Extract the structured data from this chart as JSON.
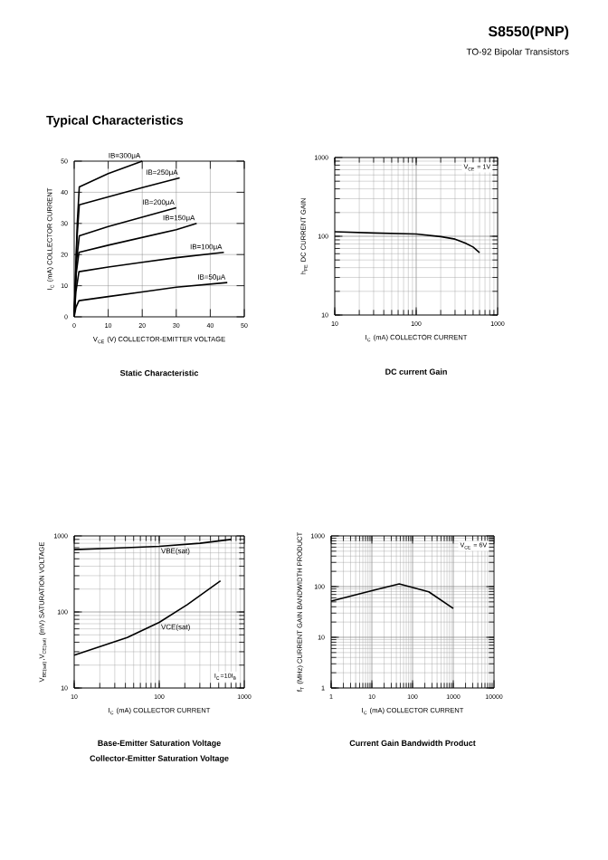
{
  "chart_data": [
    {
      "type": "other",
      "title": "S8550(PNP)",
      "subtitle": "TO-92 Bipolar Transistors",
      "annotations": [
        "Typical Characteristics"
      ]
    },
    {
      "type": "line",
      "title": "Static Characteristic",
      "xlabel": "V$_{CE}$ (V) COLLECTOR-EMITTER VOLTAGE",
      "ylabel": "I$_{C}$ (mA) COLLECTOR CURRENT",
      "xlim": [
        0,
        50
      ],
      "ylim": [
        0,
        50
      ],
      "xticks": [
        0,
        10,
        20,
        30,
        40,
        50
      ],
      "yticks": [
        0,
        10,
        20,
        30,
        40,
        50
      ],
      "grid": true,
      "series": [
        {
          "name": "IB=50μA",
          "color": "#000000",
          "x": [
            0,
            0.5,
            1.4,
            10,
            20,
            30,
            45
          ],
          "values": [
            0,
            3,
            5.2,
            6.5,
            8,
            9.5,
            11
          ]
        },
        {
          "name": "IB=100μA",
          "color": "#000000",
          "x": [
            0,
            0.5,
            1.4,
            10,
            20,
            30,
            44
          ],
          "values": [
            0,
            8,
            14.5,
            16,
            17.5,
            19,
            20.7
          ]
        },
        {
          "name": "IB=150μA",
          "color": "#000000",
          "x": [
            0,
            0.6,
            1.4,
            10,
            20,
            30,
            36
          ],
          "values": [
            0,
            14,
            20.7,
            23,
            25.5,
            28,
            30
          ]
        },
        {
          "name": "IB=200μA",
          "color": "#000000",
          "x": [
            0,
            0.7,
            1.5,
            10,
            20,
            30
          ],
          "values": [
            0,
            18,
            26,
            29,
            32,
            35
          ]
        },
        {
          "name": "IB=250μA",
          "color": "#000000",
          "x": [
            0,
            0.8,
            1.5,
            10,
            20,
            31
          ],
          "values": [
            0,
            25,
            36,
            38.5,
            41.5,
            44.6
          ]
        },
        {
          "name": "IB=300μA",
          "color": "#000000",
          "x": [
            0,
            0.9,
            1.5,
            10,
            20
          ],
          "values": [
            0,
            30,
            41.7,
            46,
            50
          ]
        }
      ]
    },
    {
      "type": "line",
      "title": "DC current Gain",
      "xlabel": "I$_{C}$ (mA) COLLECTOR CURRENT",
      "ylabel": "h$_{FE}$ DC CURRENT GAIN",
      "xlim": [
        10,
        1000
      ],
      "ylim": [
        10,
        1000
      ],
      "xticks": [
        10,
        100,
        1000
      ],
      "yticks": [
        10,
        100,
        1000
      ],
      "log": "xy",
      "grid": true,
      "annotations": [
        "V$_{CE}$ = 1V"
      ],
      "series": [
        {
          "color": "#000000",
          "x": [
            10,
            30,
            100,
            200,
            300,
            400,
            500,
            600
          ],
          "values": [
            114,
            110,
            107,
            99,
            92,
            82,
            73,
            62
          ]
        }
      ]
    },
    {
      "type": "line",
      "title": "Base-Emitter Saturation Voltage",
      "subtitle": "Collector-Emitter Saturation Voltage",
      "xlabel": "I$_{C}$ (mA) COLLECTOR CURRENT",
      "ylabel": "V$_{BE(sat)}$,V$_{CE(sat)}$ (mV) SATURATION VOLTAGE",
      "xlim": [
        10,
        1000
      ],
      "ylim": [
        10,
        1000
      ],
      "xticks": [
        10,
        100,
        1000
      ],
      "yticks": [
        10,
        100,
        1000
      ],
      "log": "xy",
      "grid": true,
      "annotations": [
        "I$_{C}$=10I$_{B}$"
      ],
      "series": [
        {
          "name": "VBE(sat)",
          "color": "#000000",
          "x": [
            10,
            30,
            100,
            300,
            700
          ],
          "values": [
            660,
            690,
            730,
            800,
            900
          ]
        },
        {
          "name": "VCE(sat)",
          "color": "#000000",
          "x": [
            10,
            42,
            100,
            214,
            525
          ],
          "values": [
            27,
            46,
            73,
            125,
            257
          ]
        }
      ]
    },
    {
      "type": "line",
      "title": "Current Gain Bandwidth Product",
      "xlabel": "I$_{C}$ (mA) COLLECTOR CURRENT",
      "ylabel": "f$_{T}$ (MHz) CURRENT GAIN BANDWIDTH PRODUCT",
      "xlim": [
        1,
        10000
      ],
      "ylim": [
        1,
        1000
      ],
      "xticks": [
        1,
        10,
        100,
        1000,
        10000
      ],
      "yticks": [
        1,
        10,
        100,
        1000
      ],
      "log": "xy",
      "grid": true,
      "annotations": [
        "V$_{CE}$ = 6V"
      ],
      "series": [
        {
          "color": "#000000",
          "x": [
            1,
            10,
            47,
            250,
            1000
          ],
          "values": [
            52,
            83,
            113,
            79,
            37
          ]
        }
      ]
    }
  ]
}
